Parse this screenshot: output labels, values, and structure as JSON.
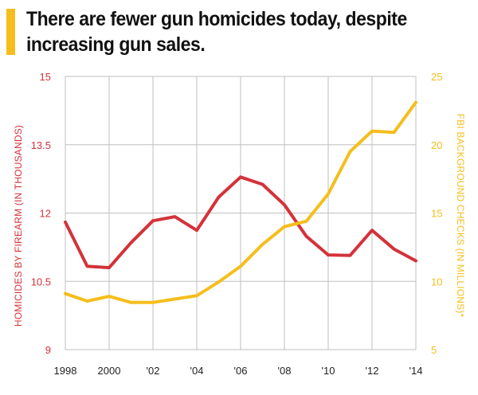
{
  "title": "There are fewer gun homicides today, despite increasing gun sales.",
  "colors": {
    "accent": "#f5be1c",
    "homicides": "#d4323a",
    "background_checks": "#f5be1c",
    "grid": "#bfbfbf"
  },
  "chart_data": {
    "type": "line",
    "title": "There are fewer gun homicides today, despite increasing gun sales.",
    "x": [
      1998,
      1999,
      2000,
      2001,
      2002,
      2003,
      2004,
      2005,
      2006,
      2007,
      2008,
      2009,
      2010,
      2011,
      2012,
      2013,
      2014
    ],
    "x_tick_labels": [
      "1998",
      "2000",
      "'02",
      "'04",
      "'06",
      "'08",
      "'10",
      "'12",
      "'14"
    ],
    "x_tick_values": [
      1998,
      2000,
      2002,
      2004,
      2006,
      2008,
      2010,
      2012,
      2014
    ],
    "xlim": [
      1998,
      2014
    ],
    "series": [
      {
        "name": "HOMICIDES BY FIREARM (IN THOUSANDS)",
        "axis": "left",
        "color": "#d4323a",
        "values": [
          11.8,
          10.83,
          10.8,
          11.35,
          11.83,
          11.92,
          11.62,
          12.35,
          12.79,
          12.63,
          12.18,
          11.49,
          11.08,
          11.07,
          11.62,
          11.21,
          10.95
        ]
      },
      {
        "name": "FBI BACKGROUND CHECKS (IN MILLIONS)*",
        "axis": "right",
        "color": "#f5be1c",
        "values": [
          9.1,
          8.55,
          8.9,
          8.45,
          8.45,
          8.7,
          8.95,
          9.95,
          11.1,
          12.7,
          14.0,
          14.4,
          16.4,
          19.5,
          21.0,
          20.9,
          23.1
        ]
      }
    ],
    "y_left": {
      "label": "HOMICIDES BY FIREARM (IN THOUSANDS)",
      "ticks": [
        "15",
        "13.5",
        "12",
        "10.5",
        "9"
      ],
      "tick_values": [
        15,
        13.5,
        12,
        10.5,
        9
      ],
      "ylim": [
        9,
        15
      ]
    },
    "y_right": {
      "label": "FBI BACKGROUND CHECKS (IN MILLIONS)*",
      "ticks": [
        "25",
        "20",
        "15",
        "10",
        "5"
      ],
      "tick_values": [
        25,
        20,
        15,
        10,
        5
      ],
      "ylim": [
        5,
        25
      ]
    },
    "grid": true
  }
}
